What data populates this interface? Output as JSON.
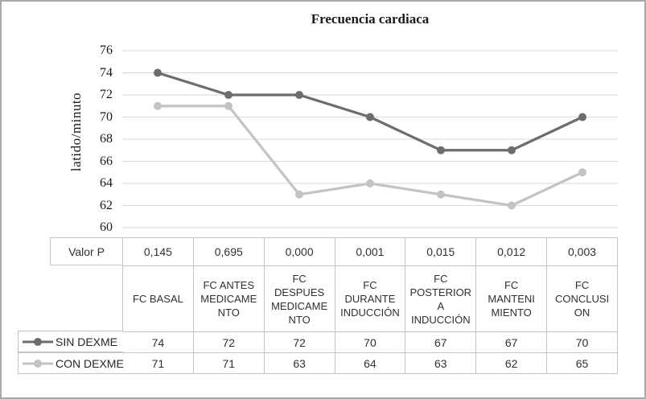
{
  "chart": {
    "title": "Frecuencia cardiaca",
    "y_axis_title": "latido/minuto",
    "y_ticks": [
      76,
      74,
      72,
      70,
      68,
      66,
      64,
      62,
      60
    ]
  },
  "chart_data": {
    "type": "line",
    "title": "Frecuencia cardiaca",
    "ylabel": "latido/minuto",
    "xlabel": "",
    "ylim": [
      60,
      76
    ],
    "grid": true,
    "legend_position": "left-of-data-table",
    "gridline_color": "#d9d9d9",
    "categories": [
      "FC BASAL",
      "FC ANTES MEDICAMENTO",
      "FC DESPUES MEDICAMENTO",
      "FC DURANTE INDUCCIÓN",
      "FC POSTERIOR A INDUCCIÓN",
      "FC MANTENIMIENTO",
      "FC CONCLUSION"
    ],
    "series": [
      {
        "name": "SIN DEXME",
        "values": [
          74,
          72,
          72,
          70,
          67,
          67,
          70
        ],
        "color": "#6d6d6d"
      },
      {
        "name": "CON DEXME",
        "values": [
          71,
          71,
          63,
          64,
          63,
          62,
          65
        ],
        "color": "#c3c3c3"
      }
    ],
    "valor_p": [
      0.145,
      0.695,
      0.0,
      0.001,
      0.015,
      0.012,
      0.003
    ]
  },
  "table": {
    "valor_p_label": "Valor P",
    "valor_p": [
      "0,145",
      "0,695",
      "0,000",
      "0,001",
      "0,015",
      "0,012",
      "0,003"
    ],
    "category_labels": [
      "FC BASAL",
      "FC ANTES\nMEDICAME\nNTO",
      "FC\nDESPUES\nMEDICAME\nNTO",
      "FC\nDURANTE\nINDUCCIÓN",
      "FC\nPOSTERIOR\nA\nINDUCCIÓN",
      "FC\nMANTENI\nMIENTO",
      "FC\nCONCLUSI\nON"
    ],
    "rows": [
      {
        "name": "SIN DEXME",
        "values": [
          "74",
          "72",
          "72",
          "70",
          "67",
          "67",
          "70"
        ]
      },
      {
        "name": "CON DEXME",
        "values": [
          "71",
          "71",
          "63",
          "64",
          "63",
          "62",
          "65"
        ]
      }
    ]
  }
}
